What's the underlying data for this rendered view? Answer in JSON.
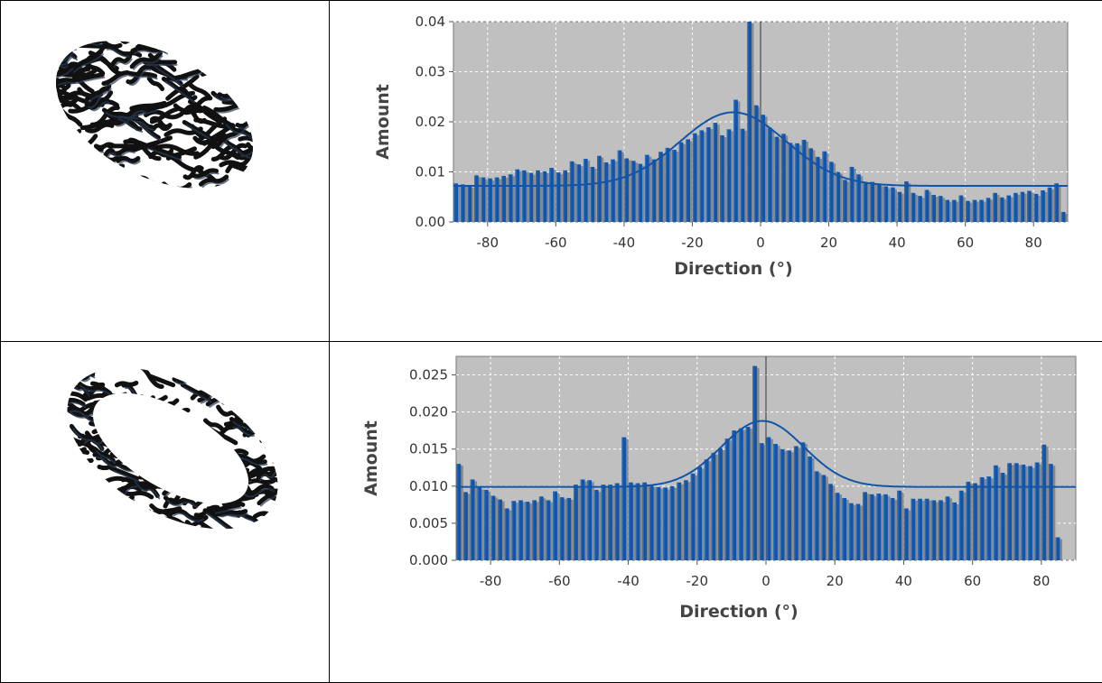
{
  "chart_data": [
    {
      "type": "bar",
      "xlabel": "Direction (°)",
      "ylabel": "Amount",
      "xlim": [
        -90,
        90
      ],
      "ylim": [
        0,
        0.04
      ],
      "xticks": [
        "-80",
        "-60",
        "-40",
        "-20",
        "0",
        "20",
        "40",
        "60",
        "80"
      ],
      "yticks": [
        "0.00",
        "0.01",
        "0.02",
        "0.03",
        "0.04"
      ],
      "grid": true,
      "bar_color": "#1255a8",
      "shadow_color": "#888888",
      "plot_bg": "#c0c0c0",
      "x_start": -90,
      "x_step": 2,
      "values": [
        0.0077,
        0.0075,
        0.0072,
        0.0093,
        0.0089,
        0.0087,
        0.0089,
        0.0092,
        0.0095,
        0.0105,
        0.0103,
        0.0098,
        0.0103,
        0.0101,
        0.0108,
        0.0099,
        0.0103,
        0.0121,
        0.0115,
        0.0126,
        0.011,
        0.0132,
        0.0119,
        0.0125,
        0.0143,
        0.0127,
        0.0122,
        0.0116,
        0.0134,
        0.0125,
        0.014,
        0.0148,
        0.0144,
        0.0159,
        0.0165,
        0.0177,
        0.0183,
        0.0189,
        0.0198,
        0.0173,
        0.0185,
        0.0244,
        0.0186,
        0.04,
        0.0233,
        0.0214,
        0.0188,
        0.017,
        0.0176,
        0.0158,
        0.0157,
        0.0164,
        0.0147,
        0.013,
        0.0141,
        0.012,
        0.01,
        0.0084,
        0.011,
        0.0095,
        0.008,
        0.008,
        0.0075,
        0.0071,
        0.0069,
        0.006,
        0.0081,
        0.0058,
        0.0052,
        0.0064,
        0.0054,
        0.0052,
        0.0044,
        0.0044,
        0.0053,
        0.0042,
        0.0044,
        0.0044,
        0.0048,
        0.0058,
        0.0049,
        0.0053,
        0.0058,
        0.006,
        0.0062,
        0.0056,
        0.0063,
        0.0069,
        0.0077,
        0.002
      ],
      "fit": {
        "type": "gaussian",
        "baseline": 0.0072,
        "amplitude": 0.0147,
        "center": -8,
        "sigma": 15.5
      }
    },
    {
      "type": "bar",
      "xlabel": "Direction (°)",
      "ylabel": "Amount",
      "xlim": [
        -90,
        90
      ],
      "ylim": [
        0,
        0.0275
      ],
      "xticks": [
        "-80",
        "-60",
        "-40",
        "-20",
        "0",
        "20",
        "40",
        "60",
        "80"
      ],
      "yticks": [
        "0.000",
        "0.005",
        "0.010",
        "0.015",
        "0.020",
        "0.025"
      ],
      "grid": true,
      "bar_color": "#1255a8",
      "shadow_color": "#888888",
      "plot_bg": "#c0c0c0",
      "x_start": -90,
      "x_step": 2,
      "values": [
        0.013,
        0.0092,
        0.0109,
        0.0098,
        0.0095,
        0.0087,
        0.0082,
        0.007,
        0.008,
        0.0081,
        0.0079,
        0.0081,
        0.0086,
        0.0081,
        0.0093,
        0.0085,
        0.0084,
        0.0102,
        0.0109,
        0.0108,
        0.0095,
        0.0102,
        0.0102,
        0.0104,
        0.0166,
        0.0105,
        0.0104,
        0.0105,
        0.0101,
        0.0099,
        0.0098,
        0.01,
        0.0105,
        0.0108,
        0.0117,
        0.0126,
        0.0136,
        0.0145,
        0.0151,
        0.0164,
        0.0175,
        0.0178,
        0.018,
        0.0262,
        0.0158,
        0.0166,
        0.0157,
        0.015,
        0.0148,
        0.0154,
        0.0159,
        0.014,
        0.012,
        0.0115,
        0.0103,
        0.0091,
        0.0084,
        0.0077,
        0.0076,
        0.0092,
        0.0089,
        0.009,
        0.0089,
        0.0084,
        0.0094,
        0.007,
        0.0083,
        0.0083,
        0.0083,
        0.0081,
        0.0081,
        0.0086,
        0.0078,
        0.0094,
        0.0106,
        0.0104,
        0.0112,
        0.0113,
        0.0128,
        0.0118,
        0.0131,
        0.0131,
        0.0129,
        0.0127,
        0.0132,
        0.0156,
        0.013,
        0.0031
      ],
      "fit": {
        "type": "gaussian",
        "baseline": 0.0099,
        "amplitude": 0.0089,
        "center": -1,
        "sigma": 12
      }
    }
  ]
}
